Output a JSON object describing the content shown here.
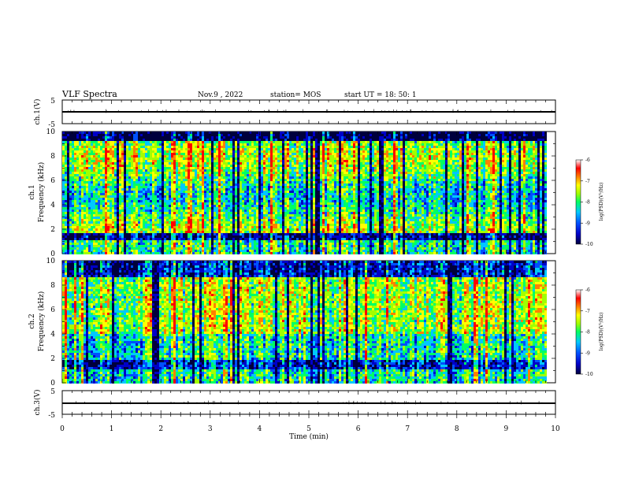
{
  "header": {
    "title": "VLF Spectra",
    "date": "Nov.9  , 2022",
    "station": "station= MOS",
    "start": "start  UT  =   18: 50: 1"
  },
  "colors": {
    "colormap": [
      "#00003c",
      "#0000c8",
      "#0050ff",
      "#00c8ff",
      "#00ff64",
      "#a0ff00",
      "#ffff00",
      "#ff8000",
      "#ff0000",
      "#ffffff"
    ],
    "axes": "#000000"
  },
  "chart_data": [
    {
      "type": "line",
      "name": "ch1-waveform",
      "ylabel": "ch.1(V)",
      "ylim": [
        -5,
        5
      ],
      "yticks": [
        "5",
        "-5"
      ],
      "xlim": [
        0,
        10
      ],
      "level": 0
    },
    {
      "type": "heatmap",
      "name": "ch1-spectrogram",
      "ylabel_line1": "ch.1",
      "ylabel_line2": "Frequency  (kHz)",
      "ylim": [
        0,
        10
      ],
      "yticks": [
        "0",
        "2",
        "4",
        "6",
        "8",
        "10"
      ],
      "xlim": [
        0,
        10
      ],
      "colorbar": {
        "label": "log(PSD)(V²/Hz)",
        "range": [
          -10,
          -6
        ],
        "ticks": [
          "-6",
          "-7",
          "-8",
          "-9",
          "-10"
        ]
      }
    },
    {
      "type": "heatmap",
      "name": "ch2-spectrogram",
      "ylabel_line1": "ch.2",
      "ylabel_line2": "Frequency  (kHz)",
      "ylim": [
        0,
        10
      ],
      "yticks": [
        "0",
        "2",
        "4",
        "6",
        "8",
        "10"
      ],
      "xlim": [
        0,
        10
      ],
      "colorbar": {
        "label": "log(PSD)(V²/Hz)",
        "range": [
          -10,
          -6
        ],
        "ticks": [
          "-6",
          "-7",
          "-8",
          "-9",
          "-10"
        ]
      }
    },
    {
      "type": "line",
      "name": "ch3-waveform",
      "ylabel": "ch.3(V)",
      "ylim": [
        -5,
        5
      ],
      "yticks": [
        "5",
        "-5"
      ],
      "xlim": [
        0,
        10
      ],
      "level": 0,
      "xlabel": "Time  (min)",
      "xticks": [
        "0",
        "1",
        "2",
        "3",
        "4",
        "5",
        "6",
        "7",
        "8",
        "9",
        "10"
      ]
    }
  ]
}
